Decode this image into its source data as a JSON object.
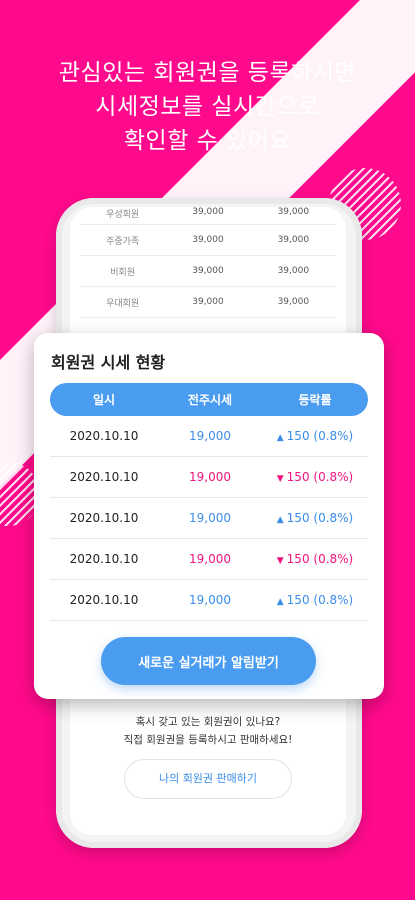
{
  "headline": {
    "line1": "관심있는 회원권을 등록하시면",
    "line2": "시세정보를 실시간으로",
    "line3": "확인할 수 있어요"
  },
  "background_table": [
    {
      "name": "우성회원",
      "v1": "39,000",
      "v2": "39,000"
    },
    {
      "name": "주중가족",
      "v1": "39,000",
      "v2": "39,000"
    },
    {
      "name": "비회원",
      "v1": "39,000",
      "v2": "39,000"
    },
    {
      "name": "우대회원",
      "v1": "39,000",
      "v2": "39,000"
    }
  ],
  "card": {
    "title": "회원권 시세 현황",
    "headers": {
      "date": "일시",
      "price": "전주시세",
      "change": "등락률"
    },
    "rows": [
      {
        "date": "2020.10.10",
        "price": "19,000",
        "change": "150 (0.8%)",
        "direction": "up"
      },
      {
        "date": "2020.10.10",
        "price": "19,000",
        "change": "150 (0.8%)",
        "direction": "down"
      },
      {
        "date": "2020.10.10",
        "price": "19,000",
        "change": "150 (0.8%)",
        "direction": "up"
      },
      {
        "date": "2020.10.10",
        "price": "19,000",
        "change": "150 (0.8%)",
        "direction": "down"
      },
      {
        "date": "2020.10.10",
        "price": "19,000",
        "change": "150 (0.8%)",
        "direction": "up"
      }
    ],
    "alert_button": "새로운 실거래가 알림받기"
  },
  "bottom": {
    "line1": "혹시 갖고 있는 회원권이 있나요?",
    "line2": "직접 회원권을 등록하시고 판매하세요!",
    "sell_button": "나의 회원권 판매하기"
  },
  "colors": {
    "background": "#ff0a8c",
    "accent": "#4a9cf0",
    "up": "#3b8de8",
    "down": "#f0157f"
  },
  "icons": {
    "up": "triangle-up-icon",
    "down": "triangle-down-icon"
  }
}
